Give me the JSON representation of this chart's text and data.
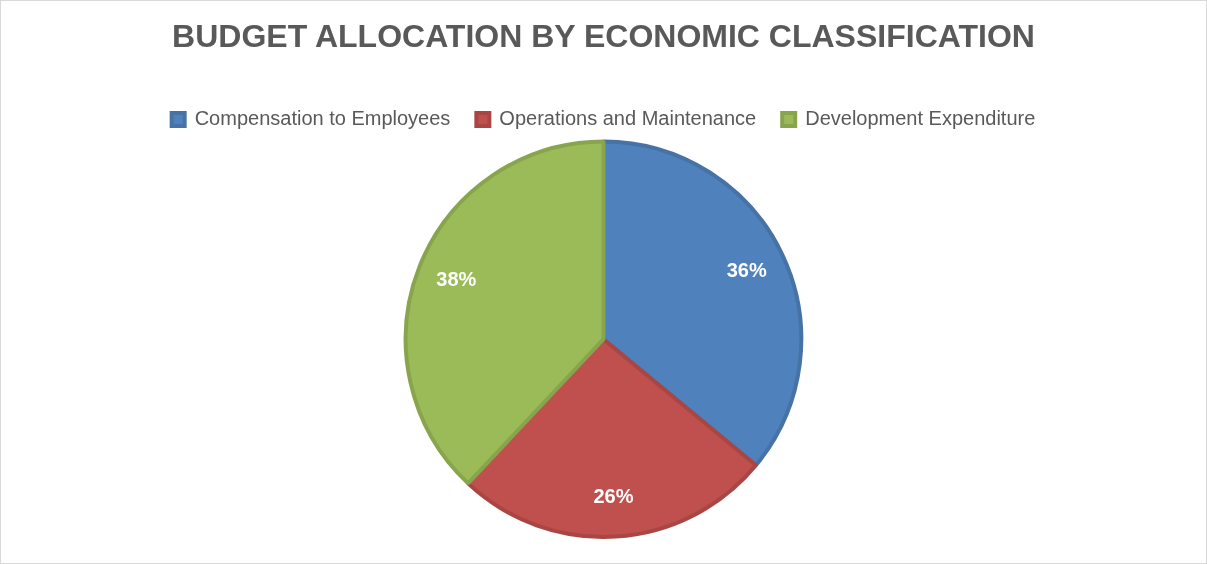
{
  "chart_data": {
    "type": "pie",
    "title": "BUDGET ALLOCATION BY ECONOMIC CLASSIFICATION",
    "categories": [
      "Compensation to Employees",
      "Operations and Maintenance",
      "Development Expenditure"
    ],
    "values": [
      36,
      26,
      38
    ],
    "colors": [
      "#4f81bd",
      "#c0504d",
      "#9bbb59"
    ],
    "value_labels": [
      "36%",
      "26%",
      "38%"
    ],
    "legend": "top"
  }
}
